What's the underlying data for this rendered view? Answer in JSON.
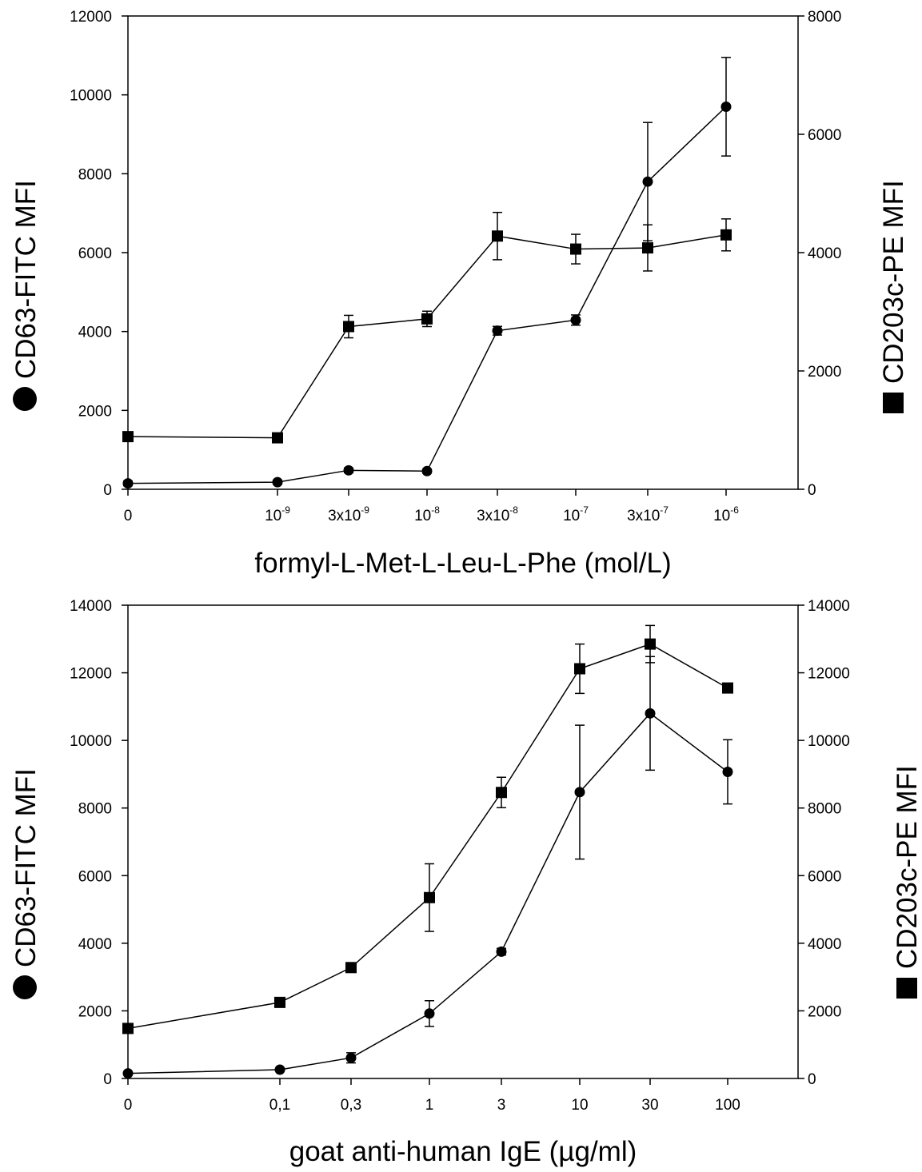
{
  "chart_data": [
    {
      "type": "line",
      "categories": [
        "0",
        "10-9",
        "3x10-9",
        "10-8",
        "3x10-8",
        "10-7",
        "3x10-7",
        "10-6"
      ],
      "xlabel": "formyl-L-Met-L-Leu-L-Phe (mol/L)",
      "ylabel_left": "CD63-FITC MFI",
      "ylabel_right": "CD203c-PE MFI",
      "ylim_left": [
        0,
        12000
      ],
      "ylim_right": [
        0,
        8000
      ],
      "yticks_left": [
        "0",
        "2000",
        "4000",
        "6000",
        "8000",
        "10000",
        "12000"
      ],
      "yticks_right": [
        "0",
        "2000",
        "4000",
        "6000",
        "8000"
      ],
      "grid": false,
      "series": [
        {
          "marker": "circle",
          "axis": "left",
          "values": [
            150,
            180,
            480,
            460,
            4020,
            4290,
            7800,
            9700
          ],
          "errors": [
            60,
            50,
            60,
            50,
            110,
            130,
            1500,
            1250
          ]
        },
        {
          "marker": "square",
          "axis": "right",
          "values": [
            890,
            870,
            2750,
            2880,
            4280,
            4060,
            4080,
            4300
          ],
          "errors": [
            50,
            40,
            190,
            130,
            400,
            250,
            390,
            270
          ]
        }
      ]
    },
    {
      "type": "line",
      "categories": [
        "0",
        "0,1",
        "0,3",
        "1",
        "3",
        "10",
        "30",
        "100"
      ],
      "xlabel": "goat anti-human IgE (µg/ml)",
      "ylabel_left": "CD63-FITC MFI",
      "ylabel_right": "CD203c-PE MFI",
      "ylim_left": [
        0,
        14000
      ],
      "ylim_right": [
        0,
        14000
      ],
      "yticks_left": [
        "0",
        "2000",
        "4000",
        "6000",
        "8000",
        "10000",
        "12000",
        "14000"
      ],
      "yticks_right": [
        "0",
        "2000",
        "4000",
        "6000",
        "8000",
        "10000",
        "12000",
        "14000"
      ],
      "grid": false,
      "series": [
        {
          "marker": "circle",
          "axis": "left",
          "values": [
            150,
            260,
            610,
            1920,
            3750,
            8470,
            10800,
            9070
          ],
          "errors": [
            40,
            40,
            150,
            380,
            100,
            1980,
            1680,
            950
          ]
        },
        {
          "marker": "square",
          "axis": "right",
          "values": [
            1480,
            2250,
            3280,
            5350,
            8460,
            12120,
            12850,
            11550
          ],
          "errors": [
            80,
            80,
            90,
            1000,
            450,
            730,
            550,
            120
          ]
        }
      ]
    }
  ]
}
